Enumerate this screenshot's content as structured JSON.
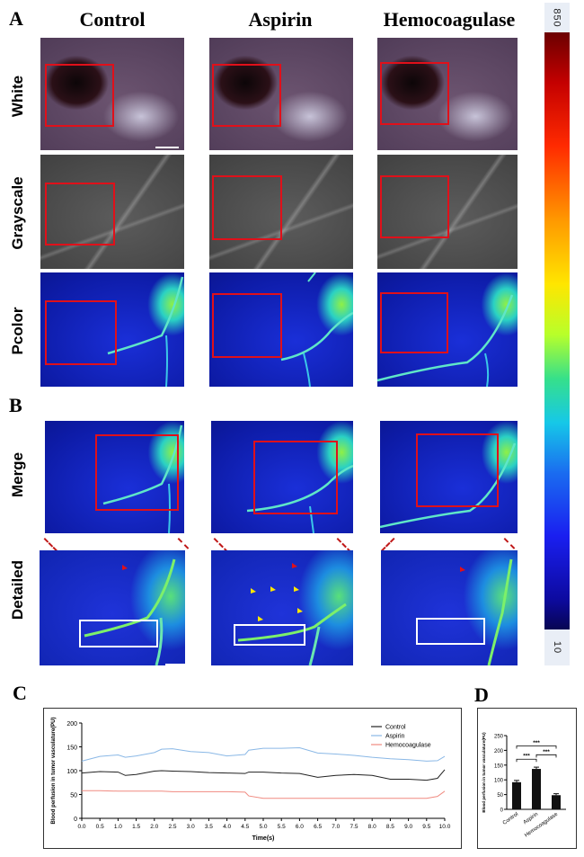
{
  "panels": {
    "a": "A",
    "b": "B",
    "c": "C",
    "d": "D"
  },
  "columns": [
    "Control",
    "Aspirin",
    "Hemocoagulase"
  ],
  "rows_a": [
    "White",
    "Grayscale",
    "Pcolor"
  ],
  "rows_b": [
    "Merge",
    "Detailed"
  ],
  "colorbar": {
    "max": "850",
    "min": "10"
  },
  "chart_data": [
    {
      "type": "line",
      "title": "",
      "xlabel": "Time(s)",
      "ylabel": "Blood perfusion in tumor vasculature(PU)",
      "xlim": [
        0,
        10
      ],
      "ylim": [
        0,
        200
      ],
      "xticks": [
        "0.0",
        "0.5",
        "1.0",
        "1.5",
        "2.0",
        "2.5",
        "3.0",
        "3.5",
        "4.0",
        "4.5",
        "5.0",
        "5.5",
        "6.0",
        "6.5",
        "7.0",
        "7.5",
        "8.0",
        "8.5",
        "9.0",
        "9.5",
        "10.0"
      ],
      "yticks": [
        "0",
        "50",
        "100",
        "150",
        "200"
      ],
      "legend": "top-right",
      "x": [
        0.0,
        0.5,
        1.0,
        1.2,
        1.5,
        2.0,
        2.2,
        2.5,
        3.0,
        3.5,
        4.0,
        4.5,
        4.6,
        5.0,
        5.5,
        6.0,
        6.5,
        7.0,
        7.5,
        8.0,
        8.5,
        9.0,
        9.5,
        9.8,
        10.0
      ],
      "series": [
        {
          "name": "Control",
          "color": "#222222",
          "values": [
            95,
            98,
            97,
            90,
            92,
            99,
            100,
            99,
            98,
            96,
            95,
            94,
            97,
            97,
            95,
            94,
            86,
            90,
            92,
            90,
            82,
            82,
            80,
            84,
            102
          ]
        },
        {
          "name": "Aspirin",
          "color": "#8ab8e6",
          "values": [
            120,
            130,
            133,
            128,
            131,
            138,
            145,
            146,
            140,
            138,
            131,
            134,
            143,
            147,
            147,
            148,
            137,
            135,
            132,
            128,
            125,
            123,
            120,
            121,
            130
          ]
        },
        {
          "name": "Hemocoagulase",
          "color": "#f08a80",
          "values": [
            58,
            58,
            57,
            57,
            57,
            57,
            57,
            56,
            56,
            56,
            56,
            55,
            47,
            42,
            42,
            42,
            42,
            42,
            42,
            42,
            42,
            42,
            42,
            46,
            57
          ]
        }
      ]
    },
    {
      "type": "bar",
      "title": "",
      "xlabel": "",
      "ylabel": "Blood perfusion in tumor vasculature(PU)",
      "categories": [
        "Control",
        "Aspirin",
        "Hemocoagulase"
      ],
      "values": [
        92,
        137,
        48
      ],
      "errors": [
        6,
        6,
        5
      ],
      "ylim": [
        0,
        250
      ],
      "yticks": [
        "0",
        "50",
        "100",
        "150",
        "200",
        "250"
      ],
      "significance": "***"
    }
  ]
}
